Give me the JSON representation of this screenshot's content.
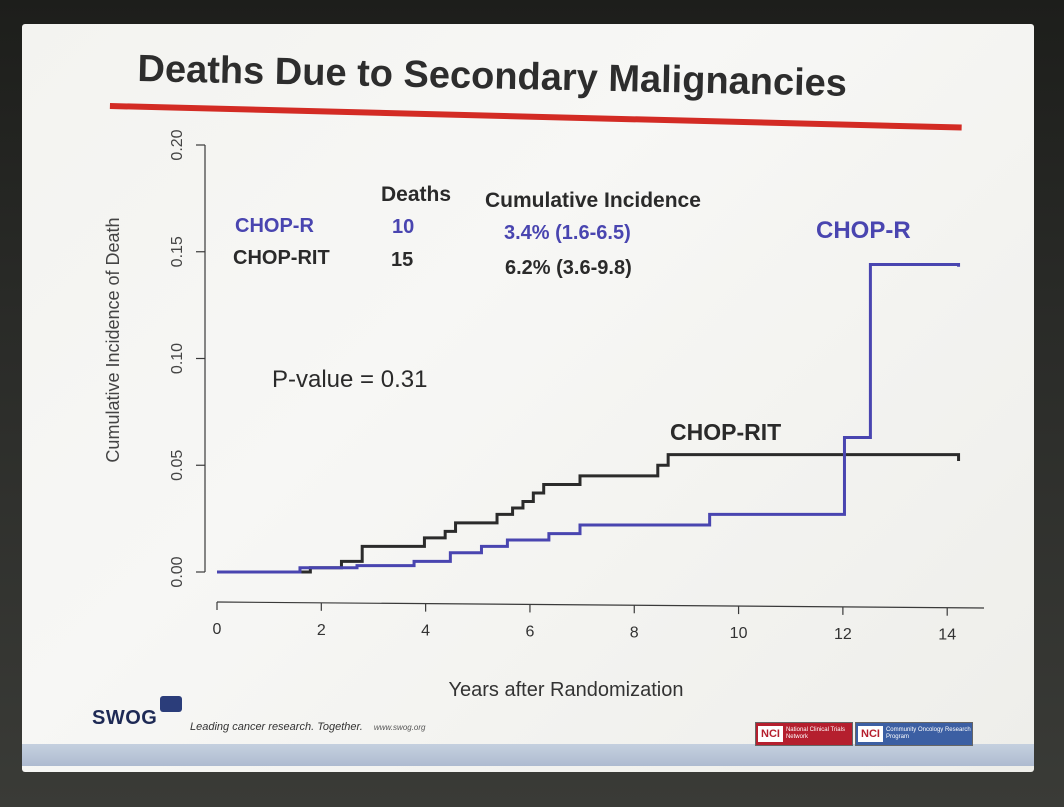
{
  "slide": {
    "title": "Deaths Due to Secondary Malignancies"
  },
  "colors": {
    "title_rule": "#d32b24",
    "chop_r": "#4945b0",
    "chop_rit": "#2b2b2b",
    "axis": "#3a3a3a"
  },
  "chart_data": {
    "type": "line",
    "subtype": "step",
    "xlabel": "Years after Randomization",
    "ylabel": "Cumulative Incidence of Death",
    "xlim": [
      0,
      14.5
    ],
    "ylim": [
      0,
      0.2
    ],
    "xticks": [
      "0",
      "2",
      "4",
      "6",
      "8",
      "10",
      "12",
      "14"
    ],
    "xtick_values": [
      0,
      2,
      4,
      6,
      8,
      10,
      12,
      14
    ],
    "yticks": [
      "0.00",
      "0.05",
      "0.10",
      "0.15",
      "0.20"
    ],
    "ytick_values": [
      0,
      0.05,
      0.1,
      0.15,
      0.2
    ],
    "grid": false,
    "series": [
      {
        "name": "CHOP-RIT",
        "color": "#2b2b2b",
        "x": [
          0,
          1.8,
          2.4,
          2.8,
          4.0,
          4.4,
          4.6,
          5.4,
          5.7,
          5.9,
          6.1,
          6.3,
          7.0,
          8.5,
          8.7,
          14.3
        ],
        "y": [
          0,
          0.002,
          0.005,
          0.012,
          0.016,
          0.019,
          0.023,
          0.027,
          0.03,
          0.033,
          0.037,
          0.041,
          0.045,
          0.05,
          0.055,
          0.052
        ]
      },
      {
        "name": "CHOP-R",
        "color": "#4945b0",
        "x": [
          0,
          1.6,
          2.7,
          3.8,
          4.5,
          5.1,
          5.6,
          6.4,
          7.0,
          9.5,
          12.1,
          12.6,
          14.3
        ],
        "y": [
          0,
          0.002,
          0.003,
          0.005,
          0.009,
          0.012,
          0.015,
          0.018,
          0.022,
          0.027,
          0.063,
          0.144,
          0.143
        ]
      }
    ],
    "annotations": {
      "chop_r_label": "CHOP-R",
      "chop_rit_label": "CHOP-RIT",
      "p_value": "P-value = 0.31"
    },
    "table": {
      "header_deaths": "Deaths",
      "header_incidence": "Cumulative Incidence",
      "rows": [
        {
          "arm": "CHOP-R",
          "deaths": "10",
          "incidence": "3.4% (1.6-6.5)"
        },
        {
          "arm": "CHOP-RIT",
          "deaths": "15",
          "incidence": "6.2% (3.6-9.8)"
        }
      ]
    }
  },
  "footer": {
    "logo": "SWOG",
    "tagline": "Leading cancer research. Together.",
    "url": "www.swog.org",
    "nci_1": "NCI",
    "nci_1_sub": "National Clinical Trials Network",
    "nci_2": "NCI",
    "nci_2_sub": "Community Oncology Research Program"
  }
}
